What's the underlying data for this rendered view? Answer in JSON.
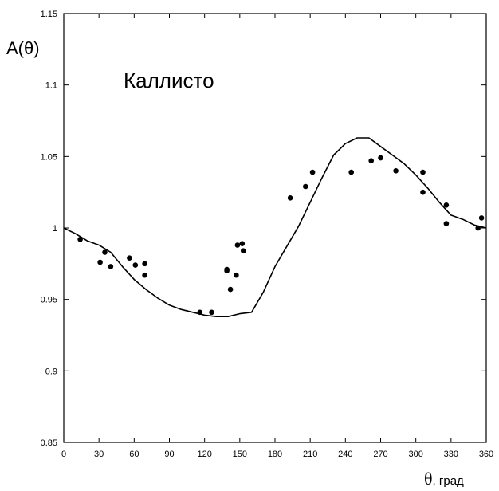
{
  "chart_data": {
    "type": "scatter",
    "ylabel": "A(θ)",
    "xlabel_symbol": "θ",
    "xlabel_unit": ", град",
    "annotation": "Каллисто",
    "xlim": [
      0,
      360
    ],
    "ylim": [
      0.85,
      1.15
    ],
    "x_ticks": [
      0,
      30,
      60,
      90,
      120,
      150,
      180,
      210,
      240,
      270,
      300,
      330,
      360
    ],
    "x_tick_labels": [
      "0",
      "30",
      "60",
      "90",
      "120",
      "150",
      "180",
      "210",
      "240",
      "270",
      "300",
      "330",
      "360"
    ],
    "y_ticks": [
      0.85,
      0.9,
      0.95,
      1.0,
      1.05,
      1.1,
      1.15
    ],
    "y_tick_labels": [
      "0.85",
      "0.9",
      "0.95",
      "1",
      "1.05",
      "1.1",
      "1.15"
    ],
    "grid": false,
    "series": [
      {
        "kind": "points",
        "color": "#000000",
        "x": [
          14,
          31,
          35,
          40,
          56,
          61,
          69,
          69,
          116,
          126,
          139,
          139,
          142,
          147,
          148,
          152,
          153,
          193,
          206,
          212,
          245,
          262,
          270,
          283,
          306,
          306,
          326,
          326,
          353,
          356
        ],
        "y": [
          0.992,
          0.976,
          0.983,
          0.973,
          0.979,
          0.974,
          0.975,
          0.967,
          0.941,
          0.941,
          0.971,
          0.97,
          0.957,
          0.967,
          0.988,
          0.989,
          0.984,
          1.021,
          1.029,
          1.039,
          1.039,
          1.047,
          1.049,
          1.04,
          1.039,
          1.025,
          1.016,
          1.003,
          1.0,
          1.007
        ]
      },
      {
        "kind": "line",
        "color": "#000000",
        "x": [
          0,
          10,
          20,
          30,
          40,
          50,
          60,
          70,
          80,
          90,
          100,
          110,
          120,
          130,
          140,
          150,
          160,
          170,
          180,
          190,
          200,
          210,
          220,
          230,
          240,
          250,
          260,
          270,
          280,
          290,
          300,
          310,
          320,
          330,
          340,
          350,
          360
        ],
        "y": [
          1.0,
          0.996,
          0.991,
          0.988,
          0.983,
          0.973,
          0.964,
          0.957,
          0.951,
          0.946,
          0.943,
          0.941,
          0.939,
          0.938,
          0.938,
          0.94,
          0.941,
          0.955,
          0.973,
          0.987,
          1.001,
          1.018,
          1.035,
          1.051,
          1.059,
          1.063,
          1.063,
          1.057,
          1.051,
          1.045,
          1.037,
          1.028,
          1.018,
          1.009,
          1.006,
          1.002,
          1.0
        ]
      }
    ]
  }
}
